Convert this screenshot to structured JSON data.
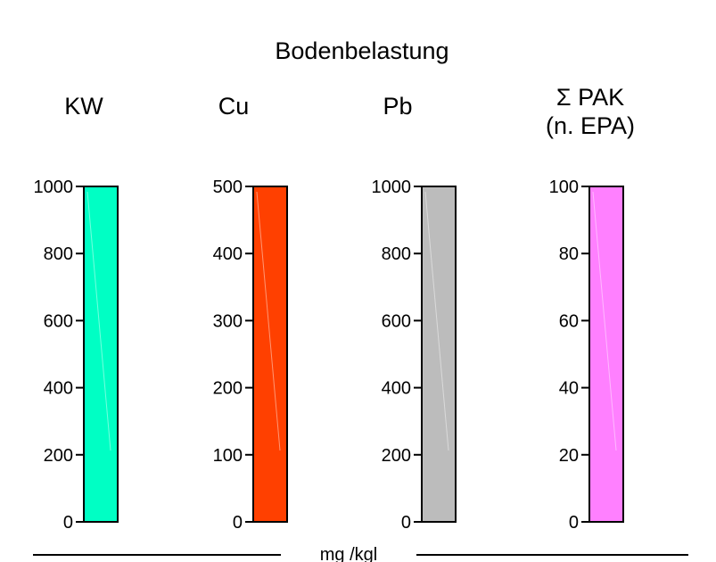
{
  "chart_data": {
    "type": "bar",
    "title": "Bodenbelastung",
    "unit": "mg /kgl",
    "panels": [
      {
        "title_lines": [
          "KW"
        ],
        "ylim": [
          0,
          1000
        ],
        "ticks": [
          0,
          200,
          400,
          600,
          800,
          1000
        ],
        "value": 1000,
        "color": "#00ffc4"
      },
      {
        "title_lines": [
          "Cu"
        ],
        "ylim": [
          0,
          500
        ],
        "ticks": [
          0,
          100,
          200,
          300,
          400,
          500
        ],
        "value": 500,
        "color": "#ff4000"
      },
      {
        "title_lines": [
          "Pb"
        ],
        "ylim": [
          0,
          1000
        ],
        "ticks": [
          0,
          200,
          400,
          600,
          800,
          1000
        ],
        "value": 1000,
        "color": "#bcbcbc"
      },
      {
        "title_lines": [
          "Σ PAK",
          "(n. EPA)"
        ],
        "ylim": [
          0,
          100
        ],
        "ticks": [
          0,
          20,
          40,
          60,
          80,
          100
        ],
        "value": 100,
        "color": "#ff80ff"
      }
    ]
  }
}
